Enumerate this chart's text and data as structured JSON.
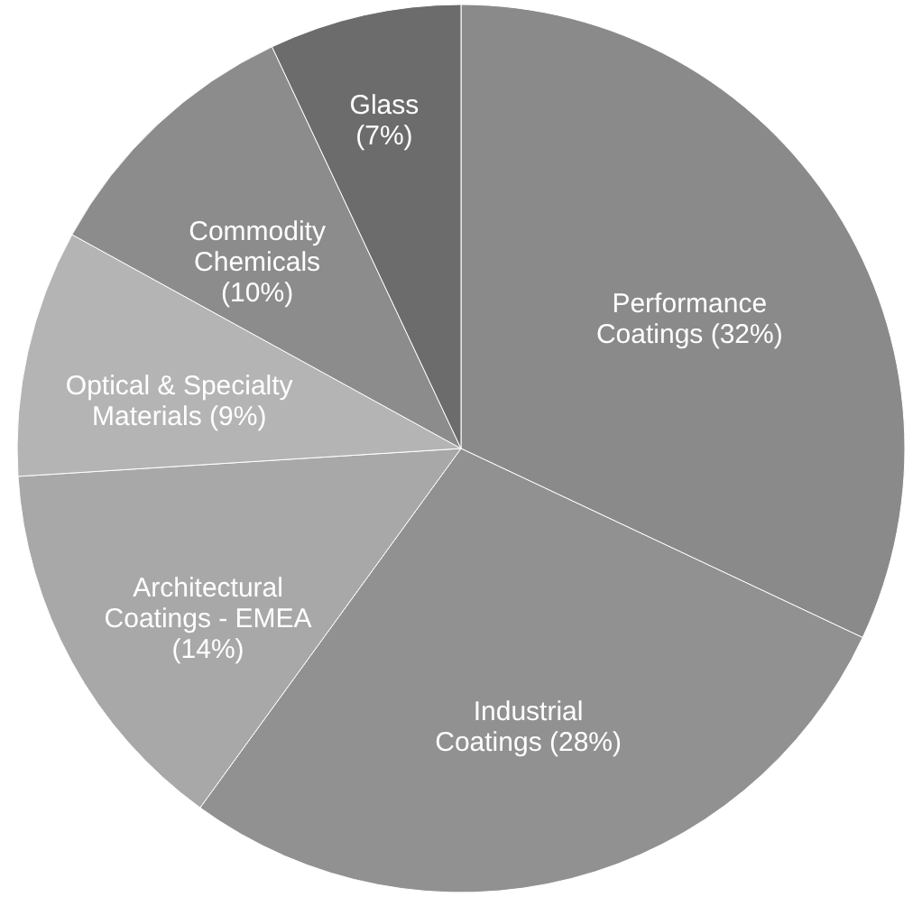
{
  "chart_data": {
    "type": "pie",
    "categories": [
      "Performance Coatings",
      "Industrial Coatings",
      "Architectural Coatings - EMEA",
      "Optical & Specialty Materials",
      "Commodity Chemicals",
      "Glass"
    ],
    "values": [
      32,
      28,
      14,
      9,
      10,
      7
    ],
    "value_labels": [
      "(32%)",
      "(28%)",
      "(14%)",
      "(9%)",
      "(10%)",
      "(7%)"
    ],
    "colors": [
      "#8a8a8a",
      "#919191",
      "#a8a8a8",
      "#b4b4b4",
      "#8c8c8c",
      "#6c6c6c"
    ],
    "legend": false
  }
}
